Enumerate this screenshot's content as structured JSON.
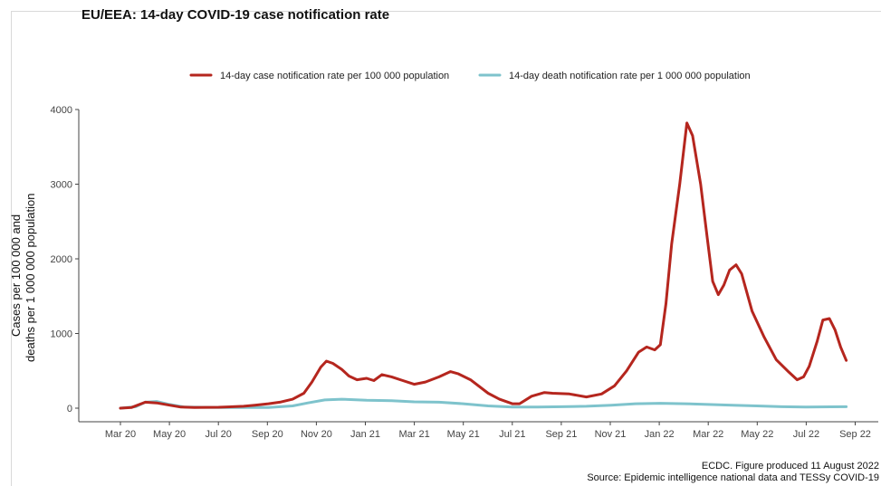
{
  "title": "EU/EEA: 14-day COVID-19 case notification rate",
  "footer": {
    "line1": "ECDC. Figure produced 11 August 2022",
    "line2": "Source: Epidemic intelligence national data and TESSy COVID-19"
  },
  "chart_data": {
    "type": "line",
    "title": "EU/EEA: 14-day COVID-19 case notification rate",
    "ylabel_line1": "Cases per 100 000 and",
    "ylabel_line2": "deaths per 1 000 000 population",
    "xlabel": "",
    "ylim": [
      0,
      4000
    ],
    "yticks": [
      0,
      1000,
      2000,
      3000,
      4000
    ],
    "xticks": [
      "Mar 20",
      "May 20",
      "Jul 20",
      "Sep 20",
      "Nov 20",
      "Jan 21",
      "Mar 21",
      "May 21",
      "Jul 21",
      "Sep 21",
      "Nov 21",
      "Jan 22",
      "Mar 22",
      "May 22",
      "Jul 22",
      "Sep 22"
    ],
    "legend_position": "top",
    "grid": false,
    "series": [
      {
        "name": "14-day case notification rate per 100 000 population",
        "color": "#b5261e",
        "points": [
          [
            "2020-03-01",
            0
          ],
          [
            "2020-03-15",
            10
          ],
          [
            "2020-04-01",
            80
          ],
          [
            "2020-04-15",
            70
          ],
          [
            "2020-05-01",
            40
          ],
          [
            "2020-05-15",
            15
          ],
          [
            "2020-06-01",
            10
          ],
          [
            "2020-07-01",
            12
          ],
          [
            "2020-08-01",
            25
          ],
          [
            "2020-08-15",
            40
          ],
          [
            "2020-09-01",
            60
          ],
          [
            "2020-09-15",
            80
          ],
          [
            "2020-10-01",
            120
          ],
          [
            "2020-10-15",
            200
          ],
          [
            "2020-10-25",
            350
          ],
          [
            "2020-11-05",
            550
          ],
          [
            "2020-11-12",
            630
          ],
          [
            "2020-11-20",
            600
          ],
          [
            "2020-12-01",
            520
          ],
          [
            "2020-12-10",
            430
          ],
          [
            "2020-12-20",
            380
          ],
          [
            "2021-01-01",
            400
          ],
          [
            "2021-01-10",
            370
          ],
          [
            "2021-01-20",
            450
          ],
          [
            "2021-02-01",
            420
          ],
          [
            "2021-02-15",
            370
          ],
          [
            "2021-03-01",
            320
          ],
          [
            "2021-03-15",
            350
          ],
          [
            "2021-04-01",
            420
          ],
          [
            "2021-04-15",
            490
          ],
          [
            "2021-04-25",
            460
          ],
          [
            "2021-05-10",
            380
          ],
          [
            "2021-06-01",
            200
          ],
          [
            "2021-06-15",
            120
          ],
          [
            "2021-07-01",
            60
          ],
          [
            "2021-07-10",
            60
          ],
          [
            "2021-07-25",
            160
          ],
          [
            "2021-08-10",
            210
          ],
          [
            "2021-08-20",
            200
          ],
          [
            "2021-09-10",
            190
          ],
          [
            "2021-10-01",
            150
          ],
          [
            "2021-10-20",
            190
          ],
          [
            "2021-11-05",
            300
          ],
          [
            "2021-11-20",
            500
          ],
          [
            "2021-12-05",
            750
          ],
          [
            "2021-12-15",
            820
          ],
          [
            "2021-12-25",
            780
          ],
          [
            "2022-01-01",
            850
          ],
          [
            "2022-01-08",
            1400
          ],
          [
            "2022-01-15",
            2200
          ],
          [
            "2022-01-25",
            3000
          ],
          [
            "2022-02-03",
            3820
          ],
          [
            "2022-02-10",
            3650
          ],
          [
            "2022-02-20",
            3000
          ],
          [
            "2022-02-28",
            2300
          ],
          [
            "2022-03-07",
            1700
          ],
          [
            "2022-03-14",
            1520
          ],
          [
            "2022-03-21",
            1650
          ],
          [
            "2022-03-28",
            1850
          ],
          [
            "2022-04-05",
            1920
          ],
          [
            "2022-04-12",
            1800
          ],
          [
            "2022-04-25",
            1300
          ],
          [
            "2022-05-10",
            950
          ],
          [
            "2022-05-25",
            650
          ],
          [
            "2022-06-10",
            480
          ],
          [
            "2022-06-20",
            380
          ],
          [
            "2022-06-28",
            420
          ],
          [
            "2022-07-05",
            560
          ],
          [
            "2022-07-15",
            900
          ],
          [
            "2022-07-22",
            1180
          ],
          [
            "2022-07-30",
            1200
          ],
          [
            "2022-08-06",
            1050
          ],
          [
            "2022-08-13",
            820
          ],
          [
            "2022-08-20",
            640
          ]
        ]
      },
      {
        "name": "14-day death notification rate per 1 000 000 population",
        "color": "#7ec3cc",
        "points": [
          [
            "2020-03-01",
            0
          ],
          [
            "2020-03-20",
            20
          ],
          [
            "2020-04-01",
            80
          ],
          [
            "2020-04-15",
            90
          ],
          [
            "2020-05-01",
            50
          ],
          [
            "2020-05-20",
            15
          ],
          [
            "2020-07-01",
            8
          ],
          [
            "2020-09-01",
            10
          ],
          [
            "2020-10-01",
            30
          ],
          [
            "2020-10-20",
            70
          ],
          [
            "2020-11-10",
            110
          ],
          [
            "2020-12-01",
            120
          ],
          [
            "2021-01-01",
            105
          ],
          [
            "2021-02-01",
            100
          ],
          [
            "2021-03-01",
            85
          ],
          [
            "2021-04-01",
            80
          ],
          [
            "2021-05-01",
            60
          ],
          [
            "2021-06-01",
            30
          ],
          [
            "2021-07-01",
            15
          ],
          [
            "2021-08-01",
            15
          ],
          [
            "2021-09-01",
            20
          ],
          [
            "2021-10-01",
            25
          ],
          [
            "2021-11-01",
            40
          ],
          [
            "2021-12-01",
            60
          ],
          [
            "2022-01-01",
            65
          ],
          [
            "2022-02-01",
            60
          ],
          [
            "2022-03-01",
            50
          ],
          [
            "2022-04-01",
            40
          ],
          [
            "2022-05-01",
            30
          ],
          [
            "2022-06-01",
            20
          ],
          [
            "2022-07-01",
            15
          ],
          [
            "2022-08-01",
            18
          ],
          [
            "2022-08-20",
            20
          ]
        ]
      }
    ]
  }
}
